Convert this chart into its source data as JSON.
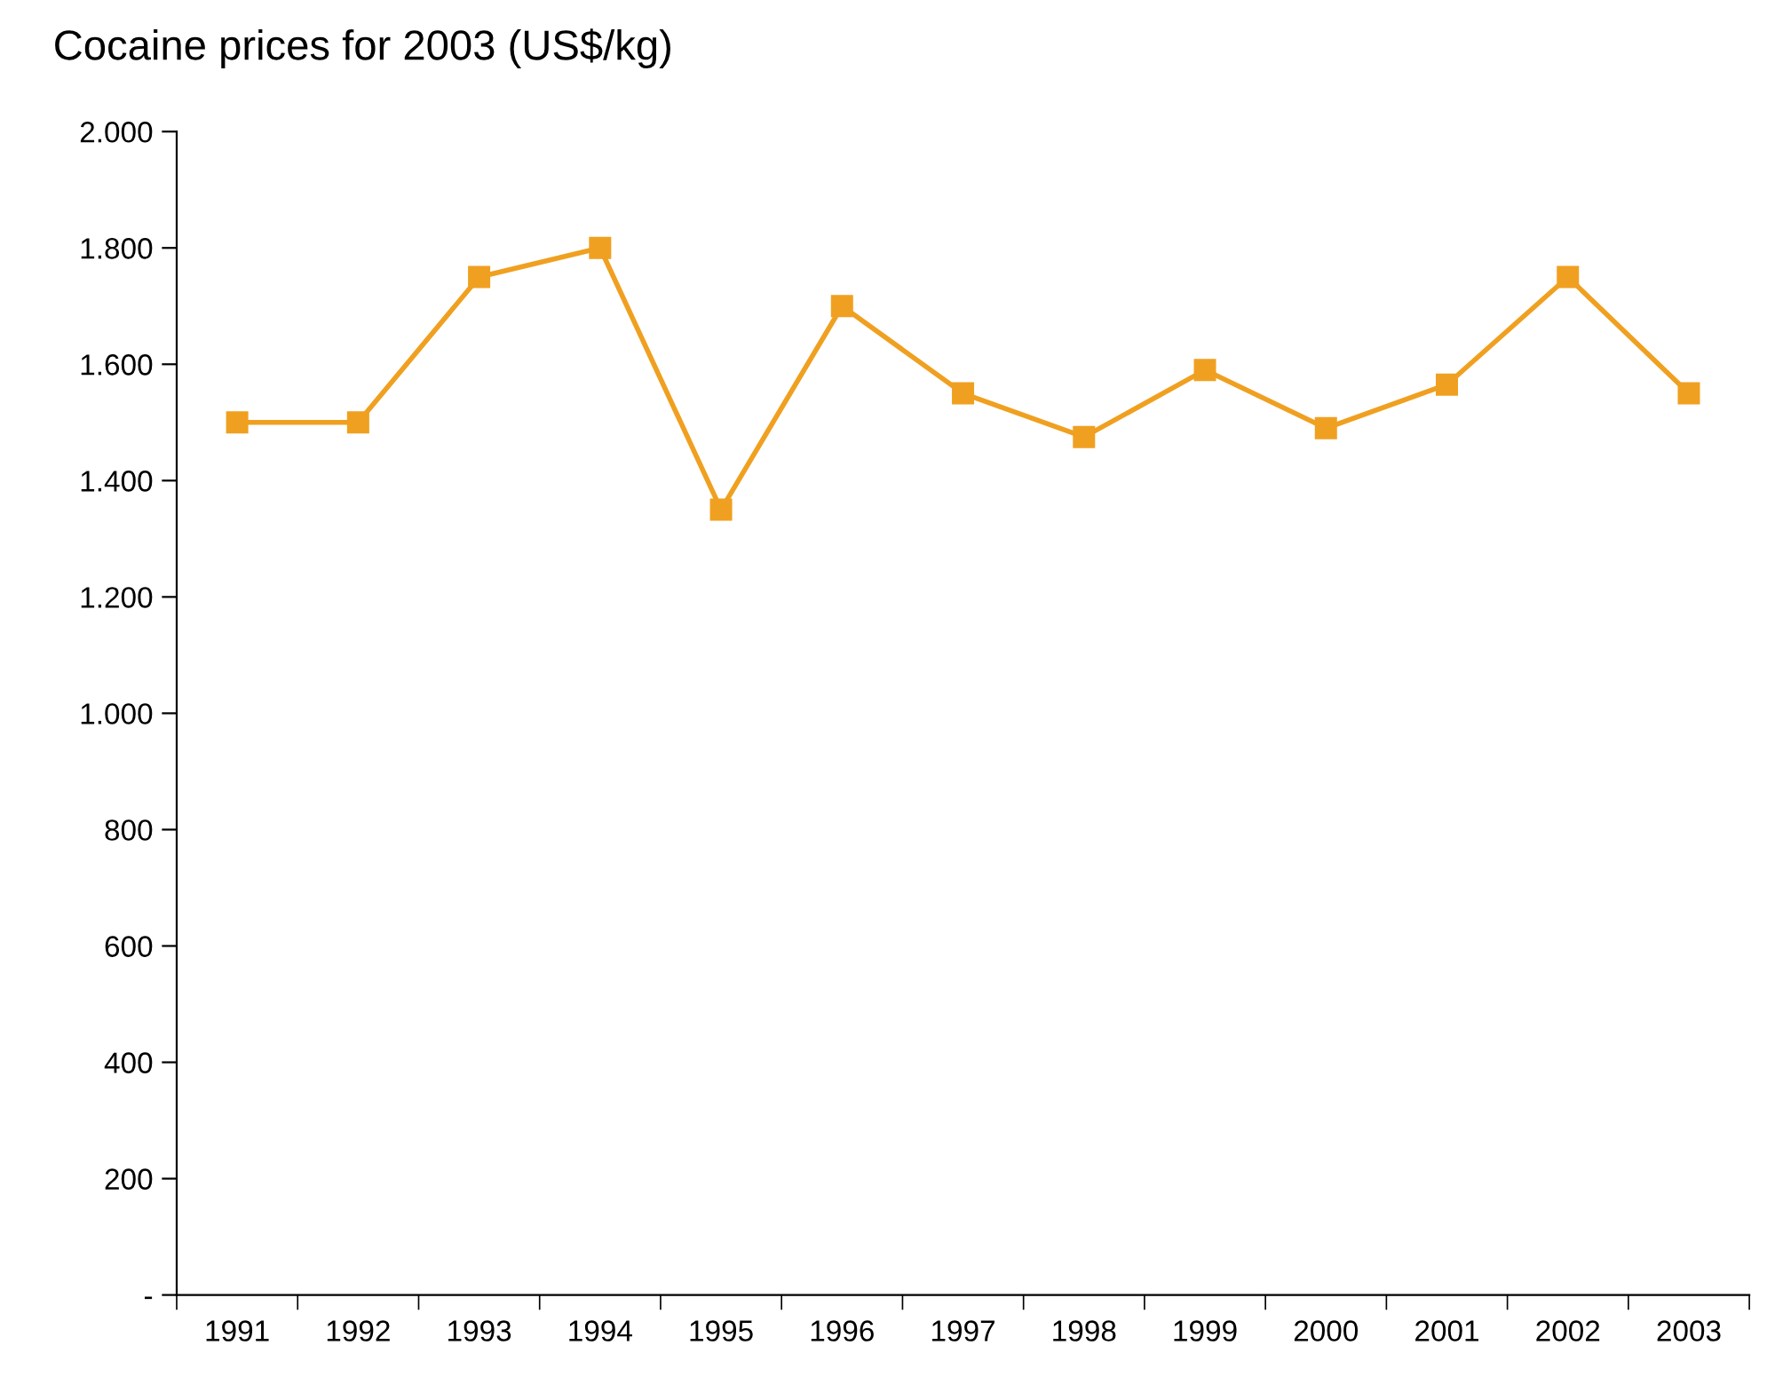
{
  "chart_data": {
    "type": "line",
    "title": "Cocaine prices for 2003 (US$/kg)",
    "categories": [
      "1991",
      "1992",
      "1993",
      "1994",
      "1995",
      "1996",
      "1997",
      "1998",
      "1999",
      "2000",
      "2001",
      "2002",
      "2003"
    ],
    "series": [
      {
        "color": "#f0a020",
        "values": [
          1500,
          1500,
          1750,
          1800,
          1350,
          1700,
          1550,
          1475,
          1590,
          1490,
          1565,
          1750,
          1550
        ]
      }
    ],
    "ylim": [
      0,
      2000
    ],
    "yticks": [
      {
        "value": 0,
        "label": "-"
      },
      {
        "value": 200,
        "label": "200"
      },
      {
        "value": 400,
        "label": "400"
      },
      {
        "value": 600,
        "label": "600"
      },
      {
        "value": 800,
        "label": "800"
      },
      {
        "value": 1000,
        "label": "1.000"
      },
      {
        "value": 1200,
        "label": "1.200"
      },
      {
        "value": 1400,
        "label": "1.400"
      },
      {
        "value": 1600,
        "label": "1.600"
      },
      {
        "value": 1800,
        "label": "1.800"
      },
      {
        "value": 2000,
        "label": "2.000"
      }
    ],
    "marker": "square",
    "line_style": "solid",
    "grid": false,
    "legend": false
  }
}
